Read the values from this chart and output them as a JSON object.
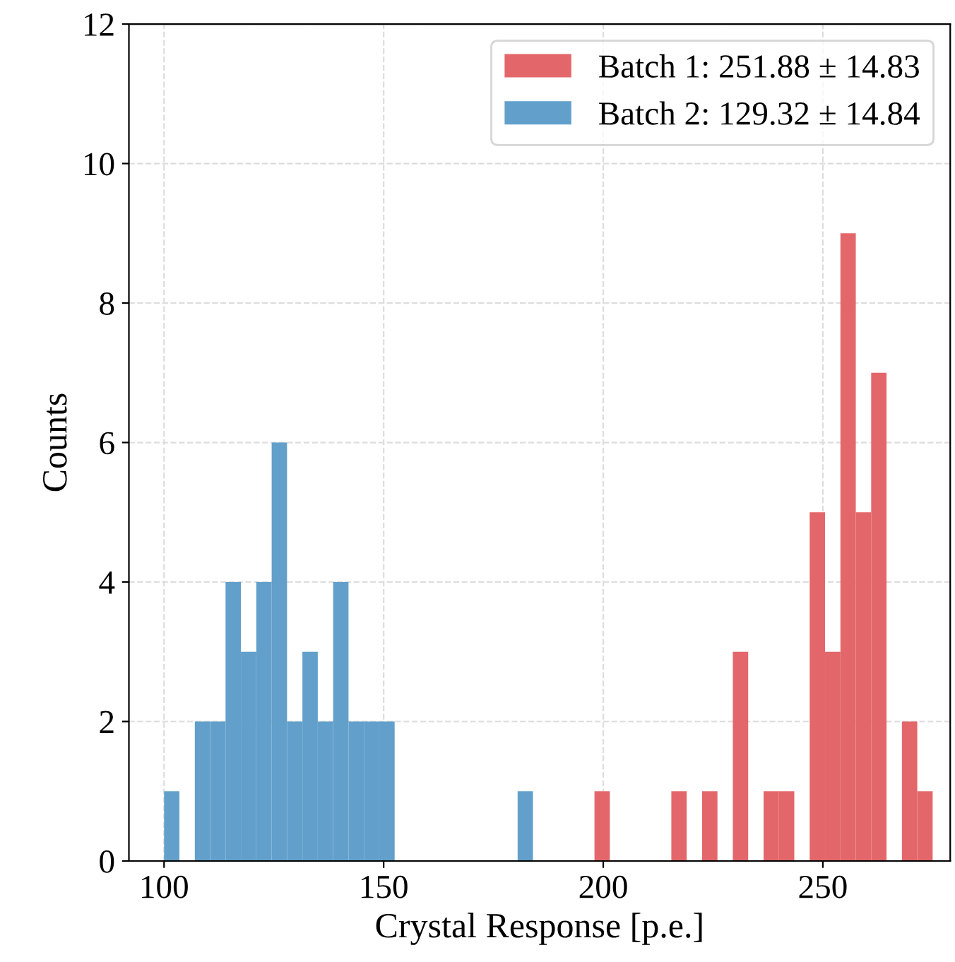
{
  "chart_data": {
    "type": "histogram",
    "xlabel": "Crystal Response [p.e.]",
    "ylabel": "Counts",
    "bins": [
      100,
      103.5,
      107,
      110.5,
      114,
      117.5,
      121,
      124.5,
      128,
      131.5,
      135,
      138.5,
      142,
      145.5,
      149,
      152.5,
      156,
      159.5,
      163,
      166.5,
      170,
      173.5,
      177,
      180.5,
      184,
      187.5,
      191,
      194.5,
      198,
      201.5,
      205,
      208.5,
      212,
      215.5,
      219,
      222.5,
      226,
      229.5,
      233,
      236.5,
      240,
      243.5,
      247,
      250.5,
      254,
      257.5,
      261,
      264.5,
      268,
      271.5,
      275
    ],
    "series": [
      {
        "name": "Batch 1: 251.88 ± 14.83",
        "color": "#e3676a",
        "values": [
          0,
          0,
          0,
          0,
          0,
          0,
          0,
          0,
          0,
          0,
          0,
          0,
          0,
          0,
          0,
          0,
          0,
          0,
          0,
          0,
          0,
          0,
          0,
          0,
          0,
          0,
          0,
          0,
          1,
          0,
          0,
          0,
          0,
          1,
          0,
          1,
          0,
          3,
          0,
          1,
          1,
          0,
          5,
          3,
          9,
          5,
          7,
          0,
          2,
          1
        ]
      },
      {
        "name": "Batch 2: 129.32 ± 14.84",
        "color": "#62a0cb",
        "values": [
          1,
          0,
          2,
          2,
          4,
          3,
          4,
          6,
          2,
          3,
          2,
          4,
          2,
          2,
          2,
          0,
          0,
          0,
          0,
          0,
          0,
          0,
          0,
          1,
          0,
          0,
          0,
          0,
          0,
          0,
          0,
          0,
          0,
          0,
          0,
          0,
          0,
          0,
          0,
          0,
          0,
          0,
          0,
          0,
          0,
          0,
          0,
          0,
          0,
          0
        ]
      }
    ],
    "xlim": [
      92,
      279
    ],
    "xticks": [
      100,
      150,
      200,
      250
    ],
    "ylim": [
      0,
      12
    ],
    "yticks": [
      0,
      2,
      4,
      6,
      8,
      10,
      12
    ],
    "grid": true,
    "legend": "top right"
  }
}
